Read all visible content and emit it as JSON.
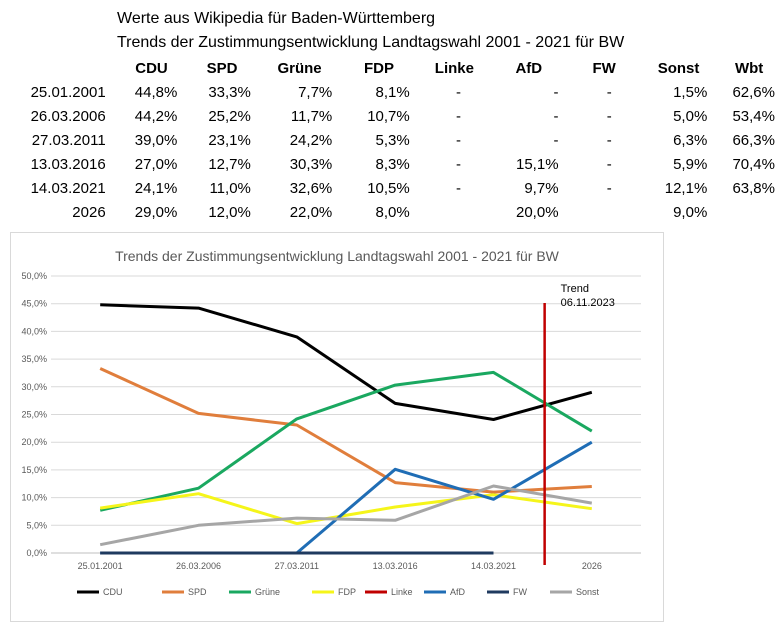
{
  "header": {
    "line1": "Werte aus Wikipedia für Baden-Württemberg",
    "line2": "Trends der Zustimmungsentwicklung Landtagswahl 2001 - 2021 für BW"
  },
  "table": {
    "columns": [
      "CDU",
      "SPD",
      "Grüne",
      "FDP",
      "Linke",
      "AfD",
      "FW",
      "Sonst",
      "Wbt"
    ],
    "rows": [
      {
        "date": "25.01.2001",
        "cells": [
          "44,8%",
          "33,3%",
          "7,7%",
          "8,1%",
          "-",
          "-",
          "-",
          "1,5%",
          "62,6%"
        ]
      },
      {
        "date": "26.03.2006",
        "cells": [
          "44,2%",
          "25,2%",
          "11,7%",
          "10,7%",
          "-",
          "-",
          "-",
          "5,0%",
          "53,4%"
        ]
      },
      {
        "date": "27.03.2011",
        "cells": [
          "39,0%",
          "23,1%",
          "24,2%",
          "5,3%",
          "-",
          "-",
          "-",
          "6,3%",
          "66,3%"
        ]
      },
      {
        "date": "13.03.2016",
        "cells": [
          "27,0%",
          "12,7%",
          "30,3%",
          "8,3%",
          "-",
          "15,1%",
          "-",
          "5,9%",
          "70,4%"
        ]
      },
      {
        "date": "14.03.2021",
        "cells": [
          "24,1%",
          "11,0%",
          "32,6%",
          "10,5%",
          "-",
          "9,7%",
          "-",
          "12,1%",
          "63,8%"
        ]
      },
      {
        "date": "2026",
        "cells": [
          "29,0%",
          "12,0%",
          "22,0%",
          "8,0%",
          "",
          "20,0%",
          "",
          "9,0%",
          ""
        ]
      }
    ]
  },
  "chart_data": {
    "type": "line",
    "title": "Trends der Zustimmungsentwicklung Landtagswahl 2001 - 2021 für BW",
    "categories": [
      "25.01.2001",
      "26.03.2006",
      "27.03.2011",
      "13.03.2016",
      "14.03.2021",
      "2026"
    ],
    "ylim": [
      0,
      50
    ],
    "yticks": [
      "0,0%",
      "5,0%",
      "10,0%",
      "15,0%",
      "20,0%",
      "25,0%",
      "30,0%",
      "35,0%",
      "40,0%",
      "45,0%",
      "50,0%"
    ],
    "grid": true,
    "legend": "bottom",
    "series": [
      {
        "name": "CDU",
        "color": "#000000",
        "values": [
          44.8,
          44.2,
          39.0,
          27.0,
          24.1,
          29.0
        ]
      },
      {
        "name": "SPD",
        "color": "#e07e3c",
        "values": [
          33.3,
          25.2,
          23.1,
          12.7,
          11.0,
          12.0
        ]
      },
      {
        "name": "Grüne",
        "color": "#1aa860",
        "values": [
          7.7,
          11.7,
          24.2,
          30.3,
          32.6,
          22.0
        ]
      },
      {
        "name": "FDP",
        "color": "#f5f51a",
        "values": [
          8.1,
          10.7,
          5.3,
          8.3,
          10.5,
          8.0
        ]
      },
      {
        "name": "Linke",
        "color": "#c00000",
        "values": [
          null,
          null,
          null,
          null,
          null,
          null
        ]
      },
      {
        "name": "AfD",
        "color": "#1f6db5",
        "values": [
          0,
          0,
          0,
          15.1,
          9.7,
          20.0
        ]
      },
      {
        "name": "FW",
        "color": "#1f3a5f",
        "values": [
          0,
          0,
          0,
          0,
          0,
          null
        ]
      },
      {
        "name": "Sonst",
        "color": "#a6a6a6",
        "values": [
          1.5,
          5.0,
          6.3,
          5.9,
          12.1,
          9.0
        ]
      }
    ],
    "trend_marker": {
      "label_line1": "Trend",
      "label_line2": "06.11.2023",
      "color": "#c00000",
      "position_between": [
        "14.03.2021",
        "2026"
      ]
    }
  }
}
